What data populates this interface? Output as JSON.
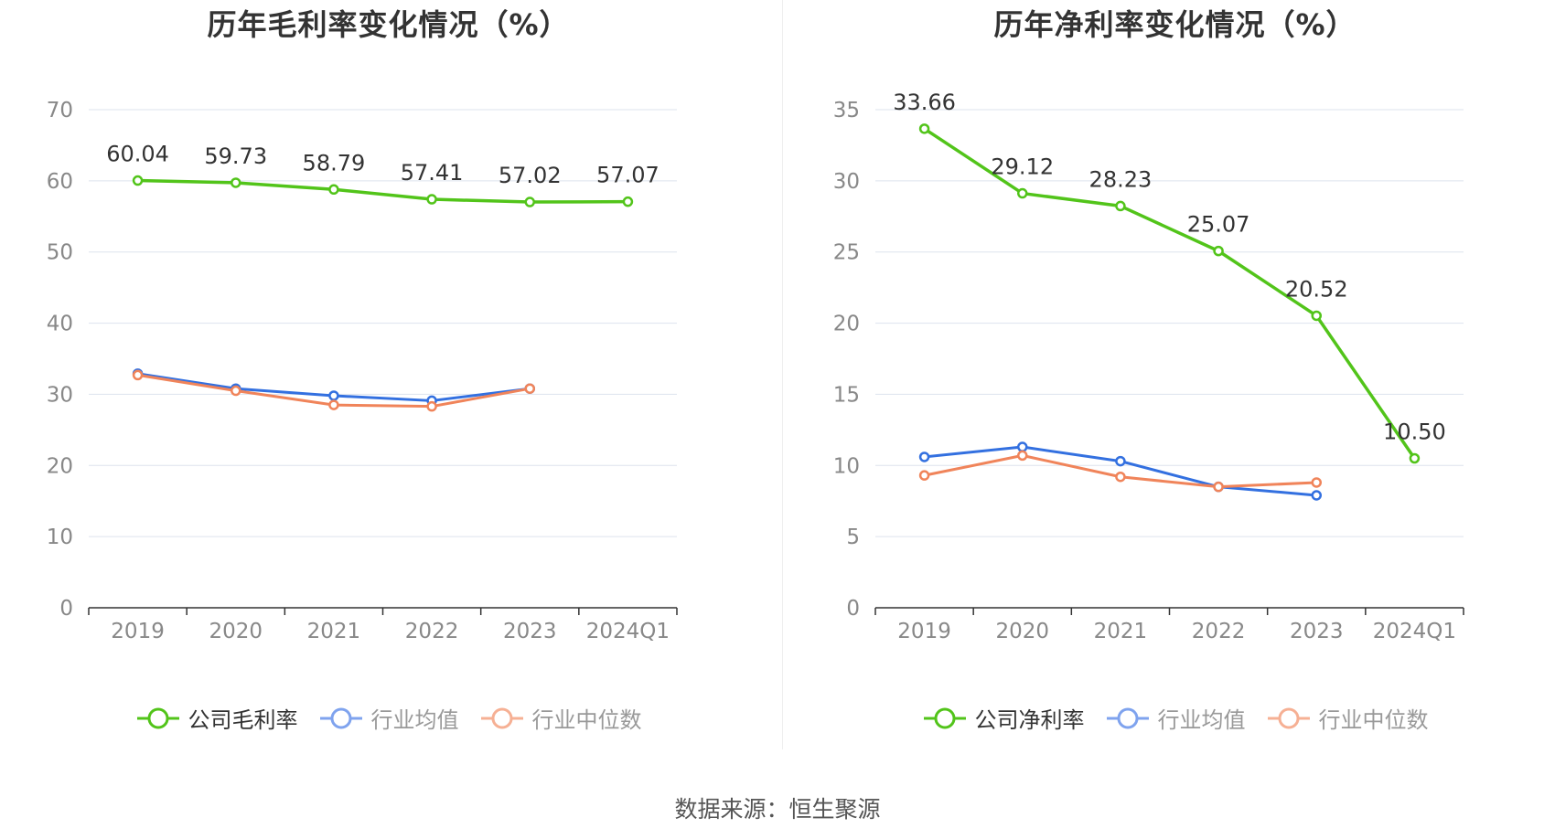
{
  "source_text": "数据来源：恒生聚源",
  "colors": {
    "company": "#52c41a",
    "avg": "#3370e0",
    "median": "#f0845a",
    "grid": "#dde3ee",
    "axis": "#333333",
    "tick": "#888888"
  },
  "chart_data": [
    {
      "type": "line",
      "title": "历年毛利率变化情况（%）",
      "categories": [
        "2019",
        "2020",
        "2021",
        "2022",
        "2023",
        "2024Q1"
      ],
      "yticks": [
        "0",
        "10",
        "20",
        "30",
        "40",
        "50",
        "60",
        "70"
      ],
      "ylim": [
        0,
        70
      ],
      "grid": true,
      "legend_position": "bottom",
      "series": [
        {
          "name": "公司毛利率",
          "values": [
            60.04,
            59.73,
            58.79,
            57.41,
            57.02,
            57.07
          ],
          "labels": [
            "60.04",
            "59.73",
            "58.79",
            "57.41",
            "57.02",
            "57.07"
          ]
        },
        {
          "name": "行业均值",
          "values": [
            32.9,
            30.8,
            29.8,
            29.1,
            30.8,
            null
          ]
        },
        {
          "name": "行业中位数",
          "values": [
            32.7,
            30.5,
            28.5,
            28.3,
            30.8,
            null
          ]
        }
      ]
    },
    {
      "type": "line",
      "title": "历年净利率变化情况（%）",
      "categories": [
        "2019",
        "2020",
        "2021",
        "2022",
        "2023",
        "2024Q1"
      ],
      "yticks": [
        "0",
        "5",
        "10",
        "15",
        "20",
        "25",
        "30",
        "35"
      ],
      "ylim": [
        0,
        35
      ],
      "grid": true,
      "legend_position": "bottom",
      "series": [
        {
          "name": "公司净利率",
          "values": [
            33.66,
            29.12,
            28.23,
            25.07,
            20.52,
            10.5
          ],
          "labels": [
            "33.66",
            "29.12",
            "28.23",
            "25.07",
            "20.52",
            "10.50"
          ]
        },
        {
          "name": "行业均值",
          "values": [
            10.6,
            11.3,
            10.3,
            8.5,
            7.9,
            null
          ]
        },
        {
          "name": "行业中位数",
          "values": [
            9.3,
            10.7,
            9.2,
            8.5,
            8.8,
            null
          ]
        }
      ]
    }
  ]
}
